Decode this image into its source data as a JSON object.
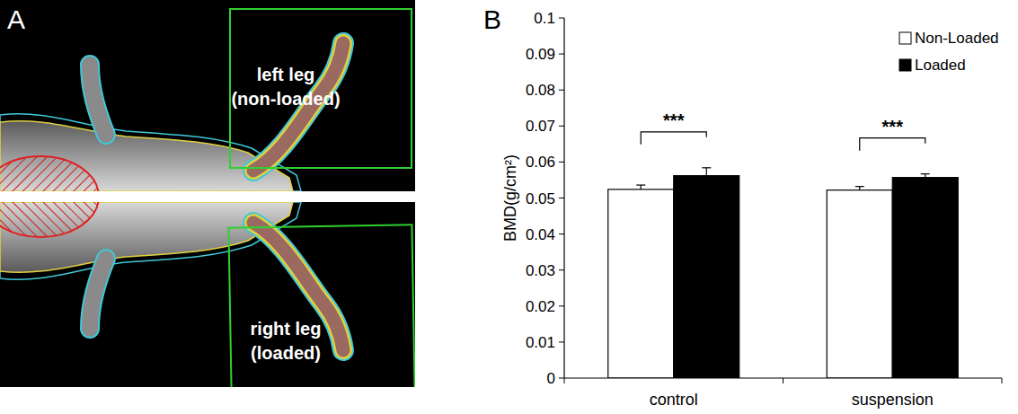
{
  "panel_a": {
    "label": "A",
    "texts": [
      "left leg (non-loaded)",
      "right leg (loaded)"
    ]
  },
  "chart_data": {
    "type": "bar",
    "panel_label": "B",
    "y_label": "BMD(g/cm²)",
    "categories": [
      "control",
      "suspension"
    ],
    "series": [
      {
        "name": "Non-Loaded",
        "color": "#ffffff",
        "values": [
          0.0524,
          0.0522
        ],
        "errors": [
          0.0012,
          0.001
        ]
      },
      {
        "name": "Loaded",
        "color": "#000000",
        "values": [
          0.0562,
          0.0557
        ],
        "errors": [
          0.0022,
          0.001
        ]
      }
    ],
    "significance": [
      {
        "category": "control",
        "label": "***"
      },
      {
        "category": "suspension",
        "label": "***"
      }
    ],
    "ylim": [
      0,
      0.1
    ],
    "yticks": [
      0,
      0.01,
      0.02,
      0.03,
      0.04,
      0.05,
      0.06,
      0.07,
      0.08,
      0.09,
      0.1
    ],
    "legend": "upper right",
    "grid": false
  }
}
